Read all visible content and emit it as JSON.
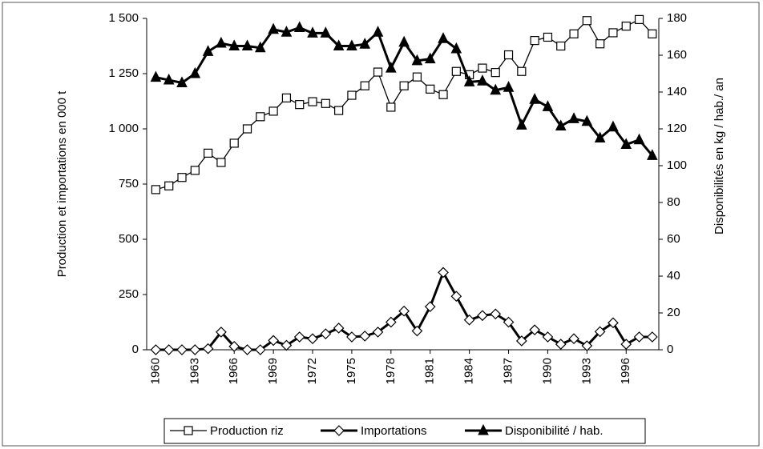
{
  "chart_data": {
    "type": "line",
    "y_label": "Production et importations en 000 t",
    "y2_label": "Disponibilités en kg / hab./ an",
    "x": [
      1960,
      1961,
      1962,
      1963,
      1964,
      1965,
      1966,
      1967,
      1968,
      1969,
      1970,
      1971,
      1972,
      1973,
      1974,
      1975,
      1976,
      1977,
      1978,
      1979,
      1980,
      1981,
      1982,
      1983,
      1984,
      1985,
      1986,
      1987,
      1988,
      1989,
      1990,
      1991,
      1992,
      1993,
      1994,
      1995,
      1996,
      1997,
      1998
    ],
    "xlim": [
      1959.3,
      1998.5
    ],
    "xticks": [
      1960,
      1963,
      1966,
      1969,
      1972,
      1975,
      1978,
      1981,
      1984,
      1987,
      1990,
      1993,
      1996
    ],
    "ylim": [
      0,
      1500
    ],
    "yticks": [
      0,
      250,
      500,
      750,
      {
        "value": 1000,
        "label": "1 000"
      },
      {
        "value": 1250,
        "label": "1 250"
      },
      {
        "value": 1500,
        "label": "1 500"
      }
    ],
    "y2lim": [
      0,
      180
    ],
    "y2ticks": [
      0,
      20,
      40,
      60,
      80,
      100,
      120,
      140,
      160,
      180
    ],
    "grid": false,
    "legend": "bottom",
    "series": [
      {
        "name": "Production riz",
        "color": "#000000",
        "marker": "square",
        "values": [
          725,
          742,
          780,
          812,
          890,
          848,
          935,
          1000,
          1055,
          1080,
          1140,
          1110,
          1123,
          1115,
          1083,
          1152,
          1195,
          1257,
          1098,
          1195,
          1235,
          1180,
          1155,
          1260,
          1245,
          1275,
          1255,
          1335,
          1260,
          1400,
          1415,
          1375,
          1430,
          1490,
          1385,
          1435,
          1465,
          1495,
          1430
        ]
      },
      {
        "name": "Importations",
        "color": "#000000",
        "marker": "diamond",
        "values": [
          0,
          0,
          0,
          0,
          5,
          80,
          15,
          0,
          0,
          42,
          20,
          58,
          50,
          72,
          98,
          58,
          62,
          80,
          125,
          175,
          85,
          195,
          350,
          242,
          135,
          155,
          162,
          125,
          40,
          90,
          58,
          25,
          50,
          18,
          82,
          122,
          25,
          58,
          58
        ]
      },
      {
        "name": "Disponibilité / hab.",
        "color": "#000000",
        "marker": "triangle",
        "axis": "y2",
        "values": [
          148,
          146.5,
          145,
          150,
          162,
          166.5,
          165,
          165,
          164,
          174,
          172.5,
          175,
          172,
          172,
          165,
          165,
          166,
          172.5,
          153,
          167,
          157,
          158,
          169,
          163.5,
          145.5,
          146,
          141,
          142.5,
          122,
          136,
          132,
          121.5,
          125.5,
          124,
          115,
          121,
          111.5,
          114,
          105.5
        ]
      }
    ]
  }
}
